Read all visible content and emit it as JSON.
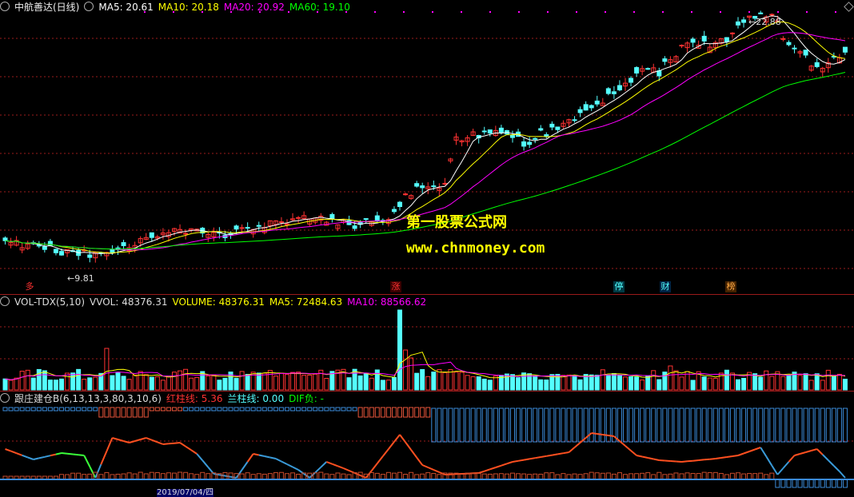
{
  "main": {
    "title": "中航善达(日线)",
    "ma5_label": "MA5: 20.61",
    "ma10_label": "MA10: 20.18",
    "ma20_label": "MA20: 20.92",
    "ma60_label": "MA60: 19.10",
    "high_label": "22.88",
    "low_label": "9.81",
    "watermark_title": "第一股票公式网",
    "watermark_url": "www.chnmoney.com",
    "events": [
      "多",
      "涨",
      "停",
      "财",
      "榜"
    ]
  },
  "volume": {
    "title": "VOL-TDX(5,10)",
    "vvol": "VVOL: 48376.31",
    "volume": "VOLUME: 48376.31",
    "ma5": "MA5: 72484.63",
    "ma10": "MA10: 88566.62"
  },
  "indicator": {
    "title": "跟庄建仓B(6,13,13,3,80,3,10,6)",
    "red_bar": "红柱线: 5.36",
    "blue_bar": "兰柱线: 0.00",
    "dif": "DIF负: -",
    "footer_date": "2019/07/04/四"
  },
  "colors": {
    "up": "#ff3232",
    "down": "#54ffff",
    "ma5": "#ffffff",
    "ma10": "#ffff00",
    "ma20": "#ff00ff",
    "ma60": "#00ff00",
    "grid": "#9b1b1b"
  }
}
